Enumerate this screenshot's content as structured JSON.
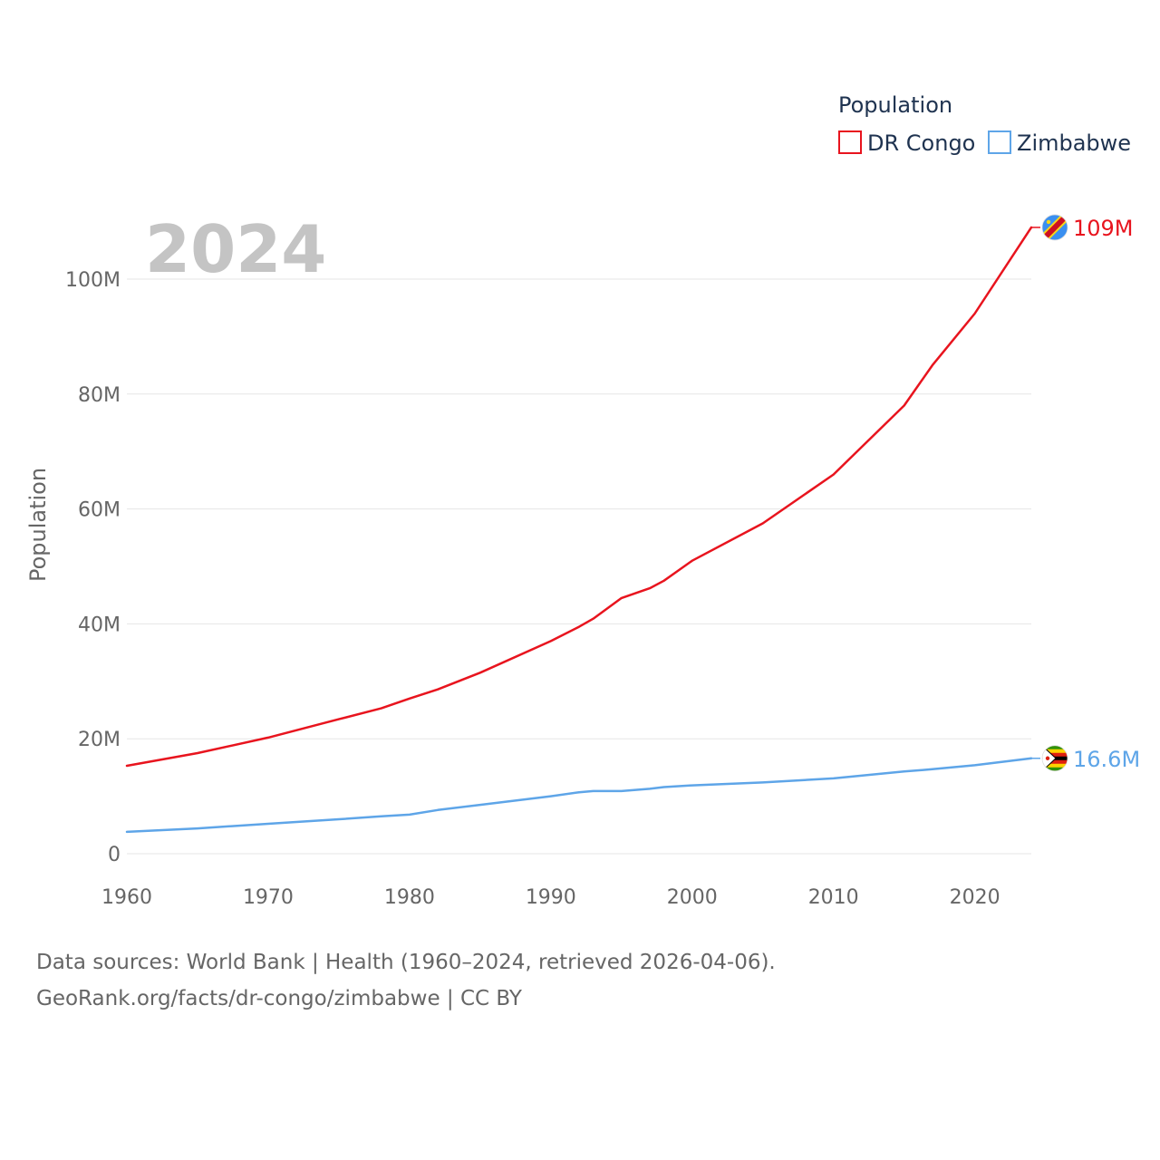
{
  "chart_data": {
    "type": "line",
    "year_label": "2024",
    "ylabel": "Population",
    "xlim": [
      1960,
      2024
    ],
    "ylim": [
      0,
      110000000
    ],
    "x_ticks": [
      {
        "value": 1960,
        "label": "1960"
      },
      {
        "value": 1970,
        "label": "1970"
      },
      {
        "value": 1980,
        "label": "1980"
      },
      {
        "value": 1990,
        "label": "1990"
      },
      {
        "value": 2000,
        "label": "2000"
      },
      {
        "value": 2010,
        "label": "2010"
      },
      {
        "value": 2020,
        "label": "2020"
      }
    ],
    "y_ticks": [
      {
        "value": 0,
        "label": "0"
      },
      {
        "value": 20000000,
        "label": "20M"
      },
      {
        "value": 40000000,
        "label": "40M"
      },
      {
        "value": 60000000,
        "label": "60M"
      },
      {
        "value": 80000000,
        "label": "80M"
      },
      {
        "value": 100000000,
        "label": "100M"
      }
    ],
    "legend": {
      "title": "Population",
      "position": "top-right"
    },
    "x": [
      1960,
      1965,
      1970,
      1975,
      1978,
      1980,
      1982,
      1985,
      1990,
      1992,
      1993,
      1995,
      1997,
      1998,
      2000,
      2005,
      2010,
      2015,
      2017,
      2020,
      2024
    ],
    "series": [
      {
        "name": "DR Congo",
        "color": "#e8141e",
        "end_label": "109M",
        "flag": "dr-congo-flag",
        "values": [
          15300000,
          17500000,
          20200000,
          23400000,
          25300000,
          27000000,
          28600000,
          31500000,
          37000000,
          39500000,
          40900000,
          44500000,
          46200000,
          47500000,
          51000000,
          57500000,
          66000000,
          78000000,
          85000000,
          94000000,
          109000000
        ]
      },
      {
        "name": "Zimbabwe",
        "color": "#5ea5e8",
        "end_label": "16.6M",
        "flag": "zimbabwe-flag",
        "values": [
          3800000,
          4400000,
          5200000,
          6000000,
          6500000,
          6800000,
          7600000,
          8500000,
          10000000,
          10700000,
          10900000,
          10900000,
          11300000,
          11600000,
          11900000,
          12400000,
          13100000,
          14300000,
          14700000,
          15400000,
          16600000
        ]
      }
    ]
  },
  "source": {
    "line1": "Data sources: World Bank | Health (1960–2024, retrieved 2026-04-06).",
    "line2": "GeoRank.org/facts/dr-congo/zimbabwe | CC BY"
  }
}
